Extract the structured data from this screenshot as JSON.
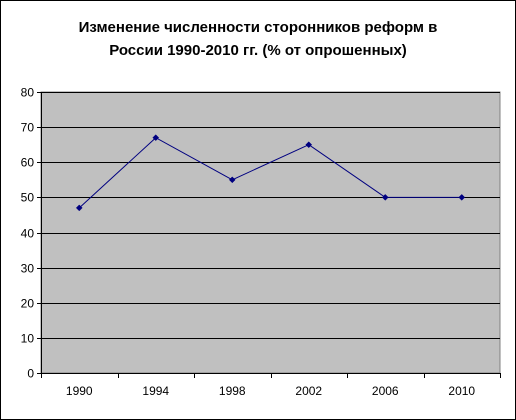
{
  "chart_data": {
    "type": "line",
    "title_lines": [
      "Изменение численности сторонников реформ в",
      "России 1990-2010 гг. (% от опрошенных)"
    ],
    "categories": [
      "1990",
      "1994",
      "1998",
      "2002",
      "2006",
      "2010"
    ],
    "series": [
      {
        "values": [
          47,
          67,
          55,
          65,
          50,
          50
        ]
      }
    ],
    "ylim": [
      0,
      80
    ],
    "yticks": [
      0,
      10,
      20,
      30,
      40,
      50,
      60,
      70,
      80
    ],
    "grid": true,
    "legend": "none",
    "colors": {
      "plot_background": "#c0c0c0",
      "gridline": "#000000",
      "series_line": "#000080",
      "marker": "#000080"
    }
  }
}
